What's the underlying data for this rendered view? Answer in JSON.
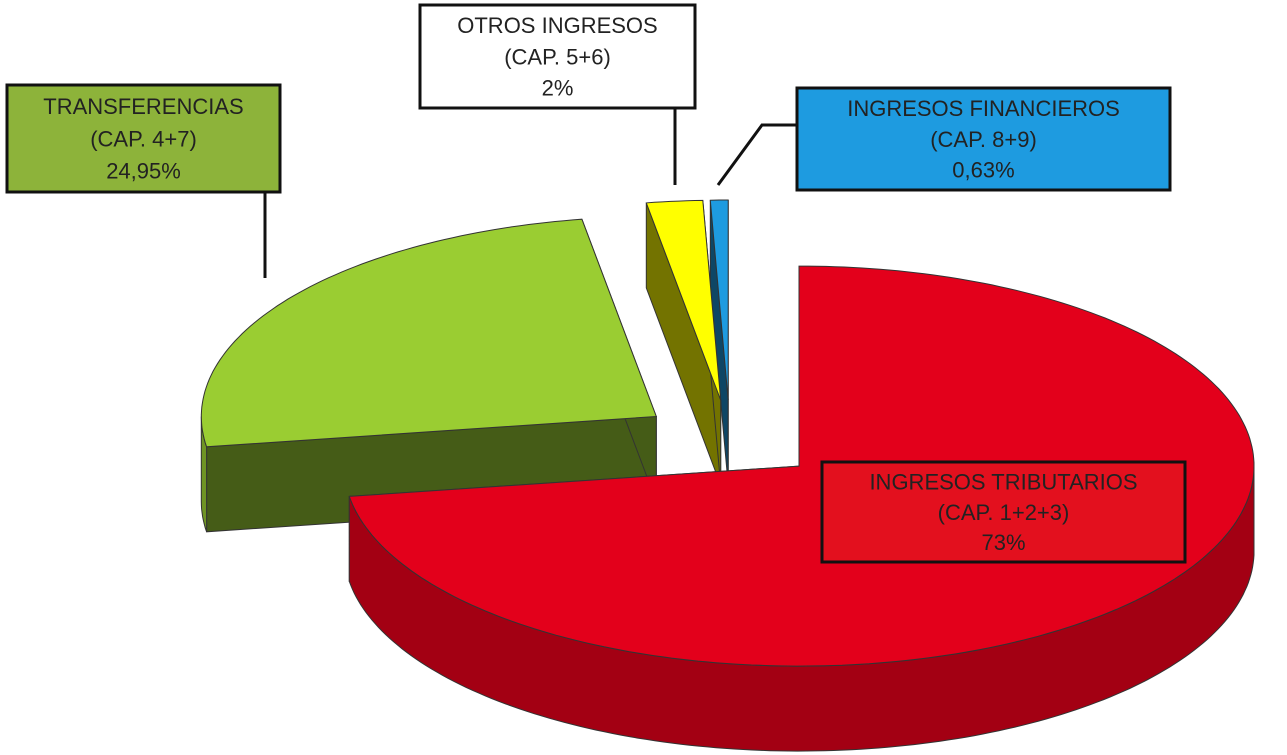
{
  "chart_data": {
    "type": "pie",
    "categories": [
      [
        "INGRESOS TRIBUTARIOS",
        "(CAP. 1+2+3)"
      ],
      [
        "TRANSFERENCIAS",
        "(CAP. 4+7)"
      ],
      [
        "OTROS INGRESOS",
        "(CAP. 5+6)"
      ],
      [
        "INGRESOS FINANCIEROS",
        "(CAP. 8+9)"
      ]
    ],
    "values": [
      73,
      24.95,
      2,
      0.63
    ],
    "value_labels": [
      "73%",
      "24,95%",
      "2%",
      "0,63%"
    ],
    "colors": [
      "#e3001b",
      "#9acd32",
      "#ffff00",
      "#1e9be0"
    ],
    "label_colors": [
      "#e3101e",
      "#8db33a",
      "#ffffff",
      "#1e9be0"
    ]
  }
}
